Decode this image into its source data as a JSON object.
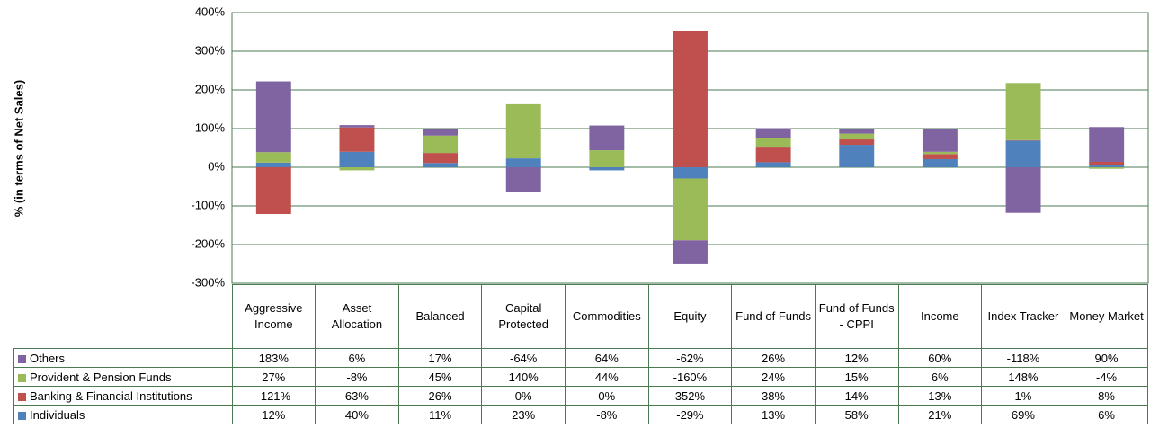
{
  "chart_data": {
    "type": "stacked-bar",
    "y_label": "% (in terms of Net Sales)",
    "categories": [
      "Aggressive Income",
      "Asset Allocation",
      "Balanced",
      "Capital Protected",
      "Commodities",
      "Equity",
      "Fund of Funds",
      "Fund of Funds - CPPI",
      "Income",
      "Index Tracker",
      "Money Market"
    ],
    "series": [
      {
        "name": "Others",
        "color": "#8064a2",
        "values": [
          183,
          6,
          17,
          -64,
          64,
          -62,
          26,
          12,
          60,
          -118,
          90
        ],
        "value_labels": [
          "183%",
          "6%",
          "17%",
          "-64%",
          "64%",
          "-62%",
          "26%",
          "12%",
          "60%",
          "-118%",
          "90%"
        ]
      },
      {
        "name": "Provident & Pension Funds",
        "color": "#9bbb59",
        "values": [
          27,
          -8,
          45,
          140,
          44,
          -160,
          24,
          15,
          6,
          148,
          -4
        ],
        "value_labels": [
          "27%",
          "-8%",
          "45%",
          "140%",
          "44%",
          "-160%",
          "24%",
          "15%",
          "6%",
          "148%",
          "-4%"
        ]
      },
      {
        "name": "Banking & Financial Institutions",
        "color": "#c0504d",
        "values": [
          -121,
          63,
          26,
          0,
          0,
          352,
          38,
          14,
          13,
          1,
          8
        ],
        "value_labels": [
          "-121%",
          "63%",
          "26%",
          "0%",
          "0%",
          "352%",
          "38%",
          "14%",
          "13%",
          "1%",
          "8%"
        ]
      },
      {
        "name": "Individuals",
        "color": "#4f81bd",
        "values": [
          12,
          40,
          11,
          23,
          -8,
          -29,
          13,
          58,
          21,
          69,
          6
        ],
        "value_labels": [
          "12%",
          "40%",
          "11%",
          "23%",
          "-8%",
          "-29%",
          "13%",
          "58%",
          "21%",
          "69%",
          "6%"
        ]
      }
    ],
    "ylim": [
      -300,
      400
    ],
    "yticks": [
      {
        "value": -300,
        "label": "-300%"
      },
      {
        "value": -200,
        "label": "-200%"
      },
      {
        "value": -100,
        "label": "-100%"
      },
      {
        "value": 0,
        "label": "0%"
      },
      {
        "value": 100,
        "label": "100%"
      },
      {
        "value": 200,
        "label": "200%"
      },
      {
        "value": 300,
        "label": "300%"
      },
      {
        "value": 400,
        "label": "400%"
      }
    ],
    "grid": true
  }
}
